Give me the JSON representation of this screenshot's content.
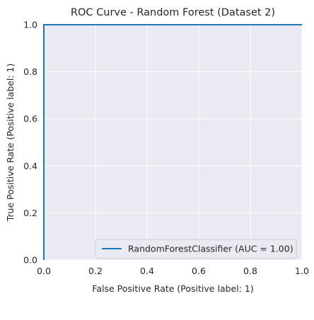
{
  "chart_data": {
    "type": "line",
    "title": "ROC Curve - Random Forest (Dataset 2)",
    "xlabel": "False Positive Rate (Positive label: 1)",
    "ylabel": "True Positive Rate (Positive label: 1)",
    "xlim": [
      0.0,
      1.0
    ],
    "ylim": [
      0.0,
      1.0
    ],
    "xticks": [
      "0.0",
      "0.2",
      "0.4",
      "0.6",
      "0.8",
      "1.0"
    ],
    "yticks": [
      "0.0",
      "0.2",
      "0.4",
      "0.6",
      "0.8",
      "1.0"
    ],
    "grid": true,
    "legend_position": "lower-right",
    "series": [
      {
        "name": "RandomForestClassifier (AUC = 1.00)",
        "color": "#1f77b4",
        "x": [
          0.0,
          0.0,
          1.0
        ],
        "y": [
          0.0,
          1.0,
          1.0
        ]
      }
    ],
    "plot_background": "#eaeaf2",
    "grid_color": "#ffffff"
  }
}
